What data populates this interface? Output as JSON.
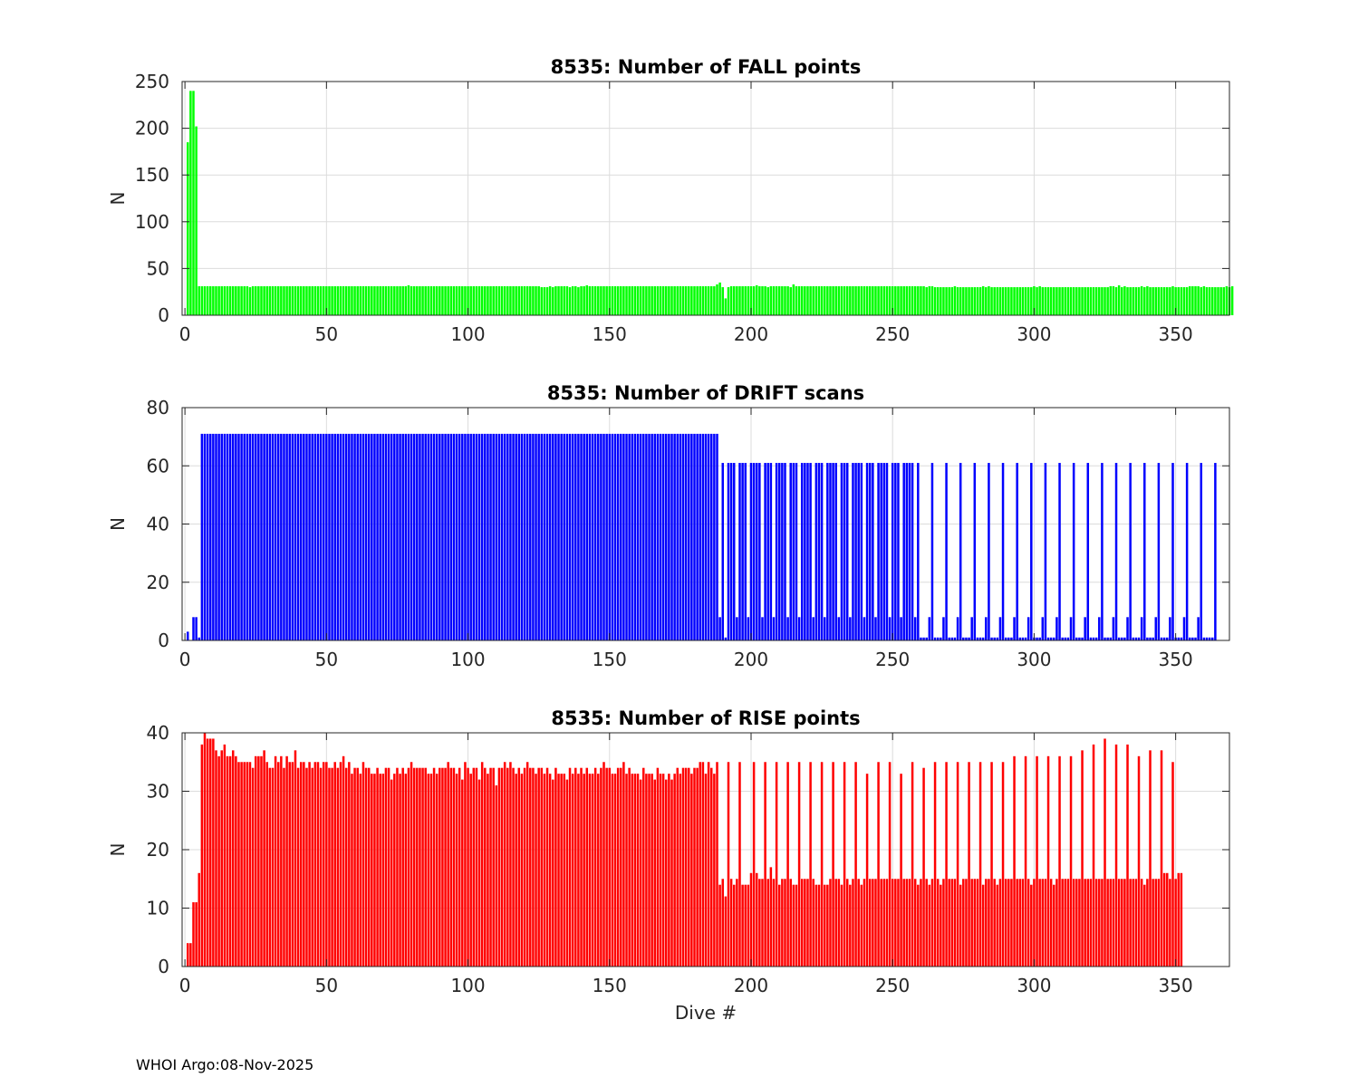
{
  "footer": "WHOI Argo:08-Nov-2025",
  "chart_data": [
    {
      "type": "bar",
      "title": "8535: Number of FALL points",
      "xlabel": "",
      "ylabel": "N",
      "xlim": [
        -1,
        369
      ],
      "ylim": [
        0,
        250
      ],
      "xticks": [
        0,
        50,
        100,
        150,
        200,
        250,
        300,
        350
      ],
      "yticks": [
        0,
        50,
        100,
        150,
        200,
        250
      ],
      "grid": true,
      "color": "#00ff00",
      "x_start": 1,
      "values": [
        185,
        240,
        240,
        202,
        31,
        31,
        31,
        31,
        31,
        31,
        31,
        31,
        31,
        31,
        31,
        31,
        31,
        31,
        31,
        31,
        31,
        31,
        30,
        31,
        31,
        31,
        31,
        31,
        31,
        31,
        31,
        31,
        31,
        31,
        31,
        31,
        31,
        31,
        31,
        31,
        31,
        31,
        31,
        31,
        31,
        31,
        31,
        31,
        31,
        31,
        31,
        31,
        31,
        31,
        31,
        31,
        31,
        31,
        31,
        31,
        31,
        31,
        31,
        31,
        31,
        31,
        31,
        31,
        31,
        31,
        31,
        31,
        31,
        31,
        31,
        31,
        31,
        31,
        32,
        31,
        31,
        31,
        31,
        31,
        31,
        31,
        31,
        31,
        31,
        31,
        31,
        31,
        31,
        31,
        31,
        31,
        31,
        31,
        31,
        31,
        31,
        31,
        31,
        31,
        31,
        31,
        31,
        31,
        31,
        31,
        31,
        31,
        31,
        31,
        31,
        31,
        31,
        31,
        31,
        31,
        31,
        31,
        31,
        31,
        31,
        30,
        30,
        30,
        31,
        30,
        31,
        31,
        31,
        31,
        31,
        30,
        31,
        31,
        30,
        31,
        31,
        32,
        31,
        31,
        31,
        31,
        31,
        31,
        31,
        31,
        31,
        31,
        31,
        31,
        31,
        31,
        31,
        31,
        31,
        31,
        31,
        31,
        31,
        31,
        31,
        31,
        31,
        31,
        31,
        31,
        31,
        31,
        31,
        31,
        31,
        31,
        31,
        31,
        31,
        31,
        31,
        31,
        31,
        31,
        31,
        31,
        31,
        33,
        35,
        30,
        18,
        30,
        31,
        31,
        31,
        31,
        31,
        31,
        31,
        31,
        31,
        32,
        31,
        31,
        31,
        30,
        31,
        31,
        31,
        31,
        31,
        31,
        31,
        30,
        33,
        31,
        31,
        31,
        31,
        31,
        31,
        31,
        31,
        31,
        31,
        31,
        31,
        31,
        31,
        31,
        31,
        31,
        31,
        31,
        31,
        31,
        31,
        31,
        31,
        31,
        31,
        31,
        31,
        31,
        31,
        31,
        31,
        31,
        31,
        31,
        31,
        31,
        31,
        31,
        31,
        31,
        31,
        31,
        31,
        31,
        31,
        30,
        31,
        31,
        30,
        30,
        30,
        30,
        30,
        30,
        30,
        31,
        30,
        30,
        30,
        30,
        30,
        30,
        30,
        30,
        30,
        31,
        30,
        31,
        30,
        30,
        30,
        30,
        30,
        30,
        30,
        30,
        30,
        30,
        30,
        30,
        30,
        30,
        30,
        31,
        30,
        31,
        30,
        30,
        30,
        30,
        30,
        30,
        30,
        30,
        30,
        30,
        30,
        30,
        30,
        30,
        30,
        30,
        30,
        30,
        30,
        30,
        30,
        30,
        30,
        30,
        31,
        31,
        30,
        32,
        30,
        31,
        30,
        30,
        30,
        30,
        30,
        31,
        30,
        31,
        30,
        30,
        30,
        30,
        30,
        30,
        30,
        30,
        31,
        30,
        30,
        30,
        30,
        30,
        31,
        31,
        31,
        31,
        30,
        31,
        30,
        30,
        30,
        30,
        30,
        30,
        30,
        31,
        30,
        31
      ]
    },
    {
      "type": "bar",
      "title": "8535: Number of DRIFT scans",
      "xlabel": "",
      "ylabel": "N",
      "xlim": [
        -1,
        369
      ],
      "ylim": [
        0,
        80
      ],
      "xticks": [
        0,
        50,
        100,
        150,
        200,
        250,
        300,
        350
      ],
      "yticks": [
        0,
        20,
        40,
        60,
        80
      ],
      "grid": true,
      "color": "#0000ff",
      "x_start": 1,
      "values": [
        3,
        0,
        8,
        8,
        1,
        71,
        71,
        71,
        71,
        71,
        71,
        71,
        71,
        71,
        71,
        71,
        71,
        71,
        71,
        71,
        71,
        71,
        71,
        71,
        71,
        71,
        71,
        71,
        71,
        71,
        71,
        71,
        71,
        71,
        71,
        71,
        71,
        71,
        71,
        71,
        71,
        71,
        71,
        71,
        71,
        71,
        71,
        71,
        71,
        71,
        71,
        71,
        71,
        71,
        71,
        71,
        71,
        71,
        71,
        71,
        71,
        71,
        71,
        71,
        71,
        71,
        71,
        71,
        71,
        71,
        71,
        71,
        71,
        71,
        71,
        71,
        71,
        71,
        71,
        71,
        71,
        71,
        71,
        71,
        71,
        71,
        71,
        71,
        71,
        71,
        71,
        71,
        71,
        71,
        71,
        71,
        71,
        71,
        71,
        71,
        71,
        71,
        71,
        71,
        71,
        71,
        71,
        71,
        71,
        71,
        71,
        71,
        71,
        71,
        71,
        71,
        71,
        71,
        71,
        71,
        71,
        71,
        71,
        71,
        71,
        71,
        71,
        71,
        71,
        71,
        71,
        71,
        71,
        71,
        71,
        71,
        71,
        71,
        71,
        71,
        71,
        71,
        71,
        71,
        71,
        71,
        71,
        71,
        71,
        71,
        71,
        71,
        71,
        71,
        71,
        71,
        71,
        71,
        71,
        71,
        71,
        71,
        71,
        71,
        71,
        71,
        71,
        71,
        71,
        71,
        71,
        71,
        71,
        71,
        71,
        71,
        71,
        71,
        71,
        71,
        71,
        71,
        71,
        71,
        71,
        71,
        71,
        71,
        8,
        61,
        1,
        61,
        61,
        61,
        8,
        61,
        61,
        61,
        8,
        61,
        61,
        61,
        61,
        8,
        61,
        61,
        61,
        8,
        61,
        61,
        61,
        61,
        8,
        61,
        61,
        61,
        8,
        61,
        61,
        61,
        61,
        8,
        61,
        61,
        61,
        8,
        61,
        61,
        61,
        61,
        8,
        61,
        61,
        61,
        8,
        61,
        61,
        61,
        61,
        8,
        61,
        61,
        61,
        8,
        61,
        61,
        61,
        61,
        8,
        61,
        61,
        61,
        8,
        61,
        61,
        61,
        61,
        8,
        61,
        1,
        1,
        1,
        8,
        61,
        1,
        1,
        1,
        8,
        61,
        1,
        1,
        1,
        8,
        61,
        1,
        1,
        1,
        8,
        61,
        1,
        1,
        1,
        8,
        61,
        1,
        1,
        1,
        8,
        61,
        1,
        1,
        1,
        8,
        61,
        1,
        1,
        1,
        8,
        61,
        1,
        1,
        1,
        8,
        61,
        1,
        1,
        1,
        8,
        61,
        1,
        1,
        1,
        8,
        61,
        1,
        1,
        1,
        8,
        61,
        1,
        1,
        1,
        8,
        61,
        1,
        1,
        1,
        8,
        61,
        1,
        1,
        1,
        8,
        61,
        1,
        1,
        1,
        8,
        61,
        1,
        1,
        1,
        8,
        61,
        1,
        1,
        1,
        8,
        61,
        1,
        1,
        1,
        8,
        61,
        1,
        1,
        1,
        8,
        61,
        1,
        1,
        1,
        1,
        61
      ]
    },
    {
      "type": "bar",
      "title": "8535: Number of RISE points",
      "xlabel": "Dive #",
      "ylabel": "N",
      "xlim": [
        -1,
        369
      ],
      "ylim": [
        0,
        40
      ],
      "xticks": [
        0,
        50,
        100,
        150,
        200,
        250,
        300,
        350
      ],
      "yticks": [
        0,
        10,
        20,
        30,
        40
      ],
      "grid": true,
      "color": "#ff0000",
      "x_start": 1,
      "values": [
        4,
        4,
        11,
        11,
        16,
        38,
        40,
        39,
        39,
        39,
        37,
        36,
        37,
        38,
        36,
        36,
        37,
        36,
        35,
        35,
        35,
        35,
        35,
        34,
        36,
        36,
        36,
        37,
        35,
        34,
        34,
        36,
        35,
        36,
        34,
        36,
        35,
        35,
        37,
        34,
        35,
        35,
        34,
        35,
        34,
        35,
        35,
        34,
        35,
        35,
        34,
        34,
        35,
        34,
        35,
        36,
        34,
        35,
        33,
        34,
        34,
        33,
        35,
        34,
        34,
        33,
        33,
        34,
        33,
        33,
        34,
        34,
        32,
        33,
        34,
        33,
        34,
        33,
        34,
        35,
        34,
        34,
        34,
        34,
        34,
        33,
        33,
        34,
        33,
        34,
        34,
        34,
        35,
        34,
        34,
        33,
        34,
        32,
        35,
        34,
        33,
        34,
        34,
        32,
        35,
        34,
        33,
        34,
        34,
        31,
        34,
        34,
        35,
        34,
        35,
        34,
        33,
        34,
        33,
        34,
        35,
        34,
        34,
        33,
        34,
        34,
        33,
        34,
        33,
        32,
        34,
        33,
        33,
        33,
        32,
        34,
        33,
        34,
        33,
        34,
        33,
        34,
        33,
        33,
        34,
        33,
        34,
        35,
        34,
        34,
        33,
        33,
        34,
        34,
        35,
        33,
        34,
        33,
        33,
        33,
        32,
        34,
        33,
        33,
        33,
        32,
        34,
        33,
        33,
        32,
        33,
        32,
        33,
        34,
        33,
        34,
        34,
        34,
        33,
        34,
        34,
        35,
        35,
        33,
        35,
        34,
        33,
        35,
        14,
        15,
        12,
        35,
        15,
        14,
        15,
        35,
        14,
        14,
        14,
        16,
        35,
        16,
        15,
        15,
        35,
        15,
        17,
        15,
        35,
        14,
        15,
        15,
        35,
        15,
        14,
        14,
        35,
        15,
        15,
        15,
        35,
        15,
        14,
        14,
        35,
        14,
        14,
        15,
        35,
        15,
        15,
        14,
        35,
        15,
        14,
        15,
        35,
        15,
        14,
        15,
        33,
        15,
        15,
        15,
        35,
        15,
        15,
        15,
        35,
        15,
        15,
        15,
        33,
        15,
        15,
        15,
        35,
        15,
        14,
        15,
        34,
        15,
        14,
        15,
        35,
        15,
        14,
        15,
        35,
        15,
        15,
        15,
        35,
        14,
        15,
        15,
        35,
        15,
        15,
        15,
        35,
        14,
        15,
        15,
        35,
        15,
        14,
        15,
        35,
        15,
        15,
        15,
        36,
        15,
        15,
        15,
        36,
        15,
        14,
        15,
        36,
        15,
        15,
        15,
        36,
        15,
        14,
        15,
        36,
        15,
        15,
        15,
        36,
        15,
        15,
        15,
        37,
        15,
        15,
        15,
        38,
        15,
        15,
        15,
        39,
        15,
        15,
        15,
        38,
        15,
        15,
        15,
        38,
        15,
        15,
        15,
        36,
        15,
        14,
        15,
        37,
        15,
        15,
        15,
        37,
        16,
        16,
        15,
        35,
        15,
        16,
        16
      ]
    }
  ]
}
